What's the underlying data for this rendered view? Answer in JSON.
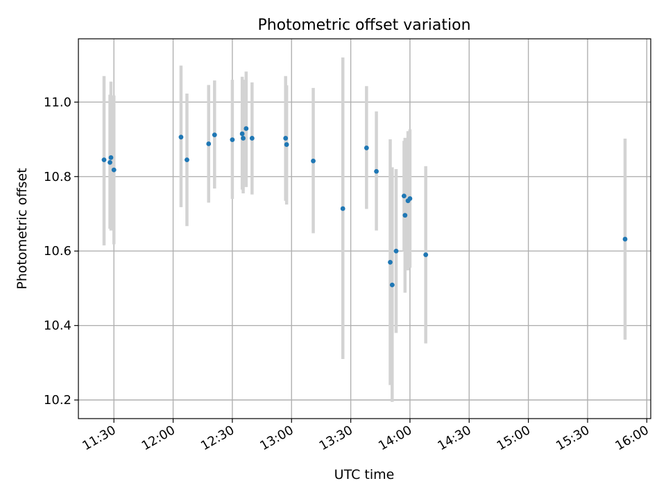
{
  "chart_data": {
    "type": "scatter",
    "title": "Photometric offset variation",
    "xlabel": "UTC time",
    "ylabel": "Photometric offset",
    "xlim": [
      "11:12",
      "16:02"
    ],
    "ylim": [
      10.15,
      11.17
    ],
    "x_ticks": [
      "11:30",
      "12:00",
      "12:30",
      "13:00",
      "13:30",
      "14:00",
      "14:30",
      "15:00",
      "15:30",
      "16:00"
    ],
    "y_ticks": [
      10.2,
      10.4,
      10.6,
      10.8,
      11.0
    ],
    "grid": true,
    "colors": {
      "point": "#1f77b4",
      "errorbar": "#d3d3d3",
      "grid": "#b0b0b0"
    },
    "series": [
      {
        "points": [
          {
            "x": "11:25",
            "y": 10.845,
            "err_low": 10.615,
            "err_high": 11.07
          },
          {
            "x": "11:28",
            "y": 10.838,
            "err_low": 10.66,
            "err_high": 11.02
          },
          {
            "x": "11:28.5",
            "y": 10.851,
            "err_low": 10.655,
            "err_high": 11.055
          },
          {
            "x": "11:30",
            "y": 10.818,
            "err_low": 10.618,
            "err_high": 11.018
          },
          {
            "x": "12:04",
            "y": 10.906,
            "err_low": 10.718,
            "err_high": 11.098
          },
          {
            "x": "12:07",
            "y": 10.845,
            "err_low": 10.667,
            "err_high": 11.023
          },
          {
            "x": "12:18",
            "y": 10.888,
            "err_low": 10.73,
            "err_high": 11.046
          },
          {
            "x": "12:21",
            "y": 10.912,
            "err_low": 10.768,
            "err_high": 11.058
          },
          {
            "x": "12:30",
            "y": 10.899,
            "err_low": 10.74,
            "err_high": 11.06
          },
          {
            "x": "12:35",
            "y": 10.915,
            "err_low": 10.765,
            "err_high": 11.068
          },
          {
            "x": "12:35.5",
            "y": 10.903,
            "err_low": 10.755,
            "err_high": 11.06
          },
          {
            "x": "12:37",
            "y": 10.929,
            "err_low": 10.772,
            "err_high": 11.082
          },
          {
            "x": "12:40",
            "y": 10.903,
            "err_low": 10.752,
            "err_high": 11.053
          },
          {
            "x": "12:57",
            "y": 10.903,
            "err_low": 10.735,
            "err_high": 11.07
          },
          {
            "x": "12:57.5",
            "y": 10.886,
            "err_low": 10.725,
            "err_high": 11.045
          },
          {
            "x": "13:11",
            "y": 10.842,
            "err_low": 10.648,
            "err_high": 11.038
          },
          {
            "x": "13:26",
            "y": 10.714,
            "err_low": 10.31,
            "err_high": 11.12
          },
          {
            "x": "13:38",
            "y": 10.877,
            "err_low": 10.713,
            "err_high": 11.043
          },
          {
            "x": "13:43",
            "y": 10.814,
            "err_low": 10.655,
            "err_high": 10.975
          },
          {
            "x": "13:50",
            "y": 10.57,
            "err_low": 10.24,
            "err_high": 10.9
          },
          {
            "x": "13:51",
            "y": 10.509,
            "err_low": 10.195,
            "err_high": 10.825
          },
          {
            "x": "13:53",
            "y": 10.6,
            "err_low": 10.38,
            "err_high": 10.82
          },
          {
            "x": "13:57",
            "y": 10.748,
            "err_low": 10.6,
            "err_high": 10.896
          },
          {
            "x": "13:57.5",
            "y": 10.696,
            "err_low": 10.488,
            "err_high": 10.904
          },
          {
            "x": "13:59",
            "y": 10.735,
            "err_low": 10.548,
            "err_high": 10.922
          },
          {
            "x": "14:00",
            "y": 10.741,
            "err_low": 10.555,
            "err_high": 10.927
          },
          {
            "x": "14:08",
            "y": 10.59,
            "err_low": 10.352,
            "err_high": 10.828
          },
          {
            "x": "15:49",
            "y": 10.632,
            "err_low": 10.362,
            "err_high": 10.902
          }
        ]
      }
    ]
  }
}
